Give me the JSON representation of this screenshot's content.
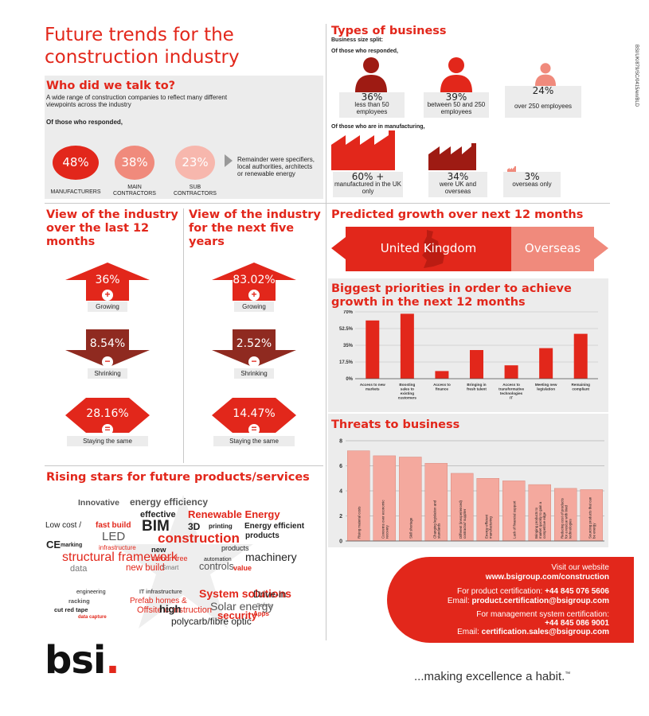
{
  "title_line1": "Future trends for the",
  "title_line2": "construction industry",
  "who": {
    "heading": "Who did we talk to?",
    "desc": "A wide range of construction companies to reflect many different viewpoints across the industry",
    "responded": "Of those who responded,",
    "circles": [
      {
        "pct": "48%",
        "label": "MANUFACTURERS",
        "color": "#e2271b"
      },
      {
        "pct": "38%",
        "label": "MAIN CONTRACTORS",
        "color": "#f08a7c"
      },
      {
        "pct": "23%",
        "label": "SUB CONTRACTORS",
        "color": "#f7b7ad"
      }
    ],
    "remainder": "Remainder were specifiers, local authorities, architects or renewable energy"
  },
  "types": {
    "heading": "Types of business",
    "size_split": "Business size split:",
    "responded": "Of those who responded,",
    "sizes": [
      {
        "pct": "36%",
        "label": "less than 50 employees"
      },
      {
        "pct": "39%",
        "label": "between 50 and 250 employees"
      },
      {
        "pct": "24%",
        "label": "over 250 employees"
      }
    ],
    "manufacturing_heading": "Of those who are in manufacturing,",
    "manufacturing": [
      {
        "pct": "60% +",
        "label": "manufactured in the UK only"
      },
      {
        "pct": "34%",
        "label": "were UK and overseas"
      },
      {
        "pct": "3%",
        "label": "overseas only"
      }
    ]
  },
  "view_past": {
    "heading": "View of the industry over the last 12 months",
    "items": [
      {
        "value": "36%",
        "label": "Growing",
        "sign": "+"
      },
      {
        "value": "8.54%",
        "label": "Shrinking",
        "sign": "−"
      },
      {
        "value": "28.16%",
        "label": "Staying the same",
        "sign": "="
      }
    ]
  },
  "view_future": {
    "heading": "View of the industry for the next five years",
    "items": [
      {
        "value": "83.02%",
        "label": "Growing",
        "sign": "+"
      },
      {
        "value": "2.52%",
        "label": "Shrinking",
        "sign": "−"
      },
      {
        "value": "14.47%",
        "label": "Staying the same",
        "sign": "="
      }
    ]
  },
  "growth": {
    "heading": "Predicted growth over next 12 months",
    "uk": "United Kingdom",
    "overseas": "Overseas",
    "uk_color": "#e2271b",
    "overseas_color": "#f08a7c"
  },
  "priorities": {
    "heading": "Biggest priorities in order to achieve growth in the next 12 months"
  },
  "threats": {
    "heading": "Threats to business"
  },
  "chart_data": [
    {
      "type": "bar",
      "title": "Biggest priorities in order to achieve growth in the next 12 months",
      "categories": [
        "Access to new markets",
        "Boosting sales to existing customers",
        "Access to finance",
        "Bringing in fresh talent",
        "Access to transformative technologies IT",
        "Meeting new legislation",
        "Remaining compliant"
      ],
      "values": [
        61,
        68,
        8,
        30,
        14,
        32,
        47
      ],
      "yticks": [
        "0%",
        "17.5%",
        "35%",
        "52.5%",
        "70%"
      ],
      "ylim": [
        0,
        70
      ]
    },
    {
      "type": "bar",
      "title": "Threats to business",
      "categories": [
        "Rising material costs",
        "Concerns over economic recovery",
        "Skill shortage",
        "Changing legislation and standards",
        "Different (inexperienced) contractor/ supplier",
        "Energy efficient manufacturing",
        "Lack of financial support",
        "Bringing products to market quickly to gain a competitive edge",
        "Reducing cost of products for a rescue with tried technologies",
        "Sourcing products that can be energy"
      ],
      "values": [
        7.2,
        6.8,
        6.7,
        6.2,
        5.4,
        5.0,
        4.8,
        4.5,
        4.2,
        4.1
      ],
      "yticks": [
        "0",
        "2",
        "4",
        "6",
        "8"
      ],
      "ylim": [
        0,
        8
      ]
    }
  ],
  "rising": {
    "heading": "Rising stars for future products/services",
    "words": [
      {
        "t": "Innovative",
        "c": "#555"
      },
      {
        "t": "energy efficiency",
        "c": "#555"
      },
      {
        "t": "effective",
        "c": "#222"
      },
      {
        "t": "Renewable Energy",
        "c": "#e2271b"
      },
      {
        "t": "Low cost /",
        "c": "#222"
      },
      {
        "t": "fast build",
        "c": "#e2271b"
      },
      {
        "t": "BIM",
        "c": "#222"
      },
      {
        "t": "3D",
        "c": "#222"
      },
      {
        "t": "printing",
        "c": "#222"
      },
      {
        "t": "Energy efficient",
        "c": "#222"
      },
      {
        "t": "LED",
        "c": "#555"
      },
      {
        "t": "products",
        "c": "#222"
      },
      {
        "t": "CE",
        "c": "#222"
      },
      {
        "t": "marking",
        "c": "#222"
      },
      {
        "t": "construction",
        "c": "#e2271b"
      },
      {
        "t": "infrastructure",
        "c": "#e2271b"
      },
      {
        "t": "new",
        "c": "#222"
      },
      {
        "t": "products",
        "c": "#222"
      },
      {
        "t": "structural framework",
        "c": "#e2271b"
      },
      {
        "t": "carbon free",
        "c": "#e2271b"
      },
      {
        "t": "automation",
        "c": "#222"
      },
      {
        "t": "machinery",
        "c": "#222"
      },
      {
        "t": "data",
        "c": "#777"
      },
      {
        "t": "new build",
        "c": "#e2271b"
      },
      {
        "t": "Smart",
        "c": "#777"
      },
      {
        "t": "controls",
        "c": "#555"
      },
      {
        "t": "value",
        "c": "#e2271b"
      },
      {
        "t": "engineering",
        "c": "#222"
      },
      {
        "t": "IT infrastructure",
        "c": "#555"
      },
      {
        "t": "System solutions",
        "c": "#e2271b"
      },
      {
        "t": "Drive-in",
        "c": "#222"
      },
      {
        "t": "racking",
        "c": "#555"
      },
      {
        "t": "Prefab homes &",
        "c": "#e2271b"
      },
      {
        "t": "Solar energy",
        "c": "#555"
      },
      {
        "t": "Safety",
        "c": "#777"
      },
      {
        "t": "cut red tape",
        "c": "#222"
      },
      {
        "t": "Offsite construction",
        "c": "#e2271b"
      },
      {
        "t": "high",
        "c": "#222"
      },
      {
        "t": "security",
        "c": "#e2271b"
      },
      {
        "t": "Apps",
        "c": "#e2271b"
      },
      {
        "t": "data capture",
        "c": "#e2271b"
      },
      {
        "t": "polycarb/fibre optic",
        "c": "#222"
      },
      {
        "t": "CDM",
        "c": "#555"
      }
    ]
  },
  "contact": {
    "visit": "Visit our website",
    "website": "www.bsigroup.com/construction",
    "product_label": "For product certification:",
    "product_phone": "+44 845 076 5606",
    "product_email_label": "Email:",
    "product_email": "product.certification@bsigroup.com",
    "mgmt_label": "For management system certification:",
    "mgmt_phone": "+44 845 086 9001",
    "mgmt_email_label": "Email:",
    "mgmt_email": "certification.sales@bsigroup.com"
  },
  "footer": {
    "logo": "bsi",
    "tagline": "...making excellence a habit.",
    "tm": "™",
    "side_code": "BSI/UK/879/SC/0415/en/BLD"
  }
}
